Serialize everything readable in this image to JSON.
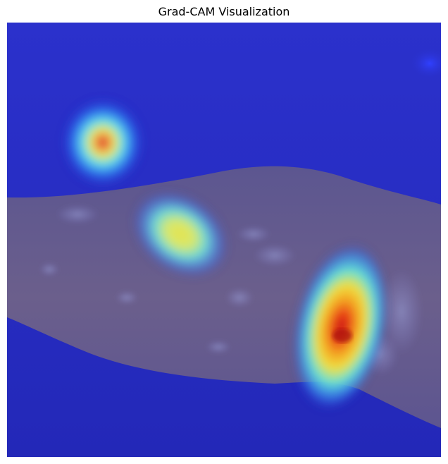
{
  "figure": {
    "title": "Grad-CAM Visualization"
  },
  "image": {
    "description_icon": "gradcam-heatmap-overlay-icon",
    "colors": {
      "background_blue": "#2a2fc8",
      "skin_tone": "#6a5f8a",
      "heat_red": "#d81a10",
      "heat_yellow": "#f2e44a",
      "heat_cyan": "#5fe0e8"
    }
  }
}
